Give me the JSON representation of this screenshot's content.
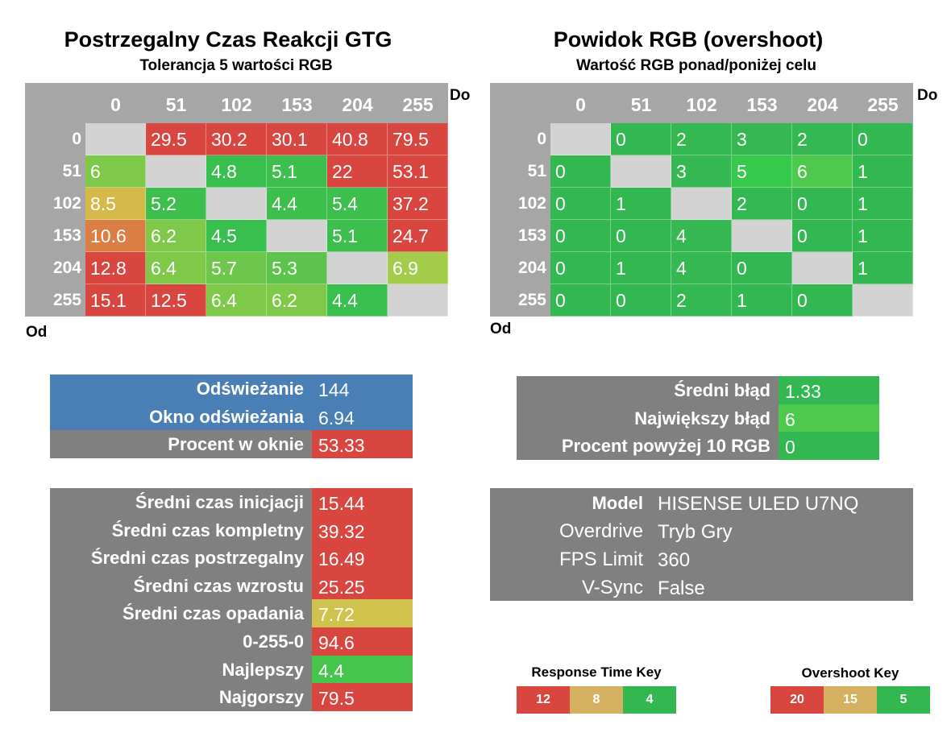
{
  "left_chart": {
    "title": "Postrzegalny Czas Reakcji GTG",
    "subtitle": "Tolerancja 5 wartości RGB",
    "to_label": "Do",
    "from_label": "Od"
  },
  "right_chart": {
    "title": "Powidok RGB (overshoot)",
    "subtitle": "Wartość RGB ponad/poniżej celu",
    "to_label": "Do",
    "from_label": "Od"
  },
  "chart_data": [
    {
      "type": "heatmap",
      "title": "Postrzegalny Czas Reakcji GTG",
      "subtitle": "Tolerancja 5 wartości RGB",
      "xlabel": "Do",
      "ylabel": "Od",
      "x": [
        "0",
        "51",
        "102",
        "153",
        "204",
        "255"
      ],
      "y": [
        "0",
        "51",
        "102",
        "153",
        "204",
        "255"
      ],
      "values": [
        [
          null,
          "29.5",
          "30.2",
          "30.1",
          "40.8",
          "79.5"
        ],
        [
          "6",
          null,
          "4.8",
          "5.1",
          "22",
          "53.1"
        ],
        [
          "8.5",
          "5.2",
          null,
          "4.4",
          "5.4",
          "37.2"
        ],
        [
          "10.6",
          "6.2",
          "4.5",
          null,
          "5.1",
          "24.7"
        ],
        [
          "12.8",
          "6.4",
          "5.7",
          "5.3",
          null,
          "6.9"
        ],
        [
          "15.1",
          "12.5",
          "6.4",
          "6.2",
          "4.4",
          null
        ]
      ],
      "colors": [
        [
          null,
          "#d9453f",
          "#d9453f",
          "#d9453f",
          "#d9453f",
          "#d9453f"
        ],
        [
          "#7fc94a",
          null,
          "#38bf4e",
          "#3cbf4c",
          "#d9453f",
          "#d9453f"
        ],
        [
          "#d4b94a",
          "#3cbf4c",
          null,
          "#3cbf4c",
          "#3cbf4c",
          "#d9453f"
        ],
        [
          "#da7e44",
          "#7fc94a",
          "#38bf4e",
          null,
          "#3cbf4c",
          "#d9453f"
        ],
        [
          "#d9453f",
          "#7fc94a",
          "#6ec64d",
          "#5cc44c",
          null,
          "#a3cc4b"
        ],
        [
          "#d9453f",
          "#d9453f",
          "#7fc94a",
          "#7fc94a",
          "#38bf4e",
          null
        ]
      ]
    },
    {
      "type": "heatmap",
      "title": "Powidok RGB (overshoot)",
      "subtitle": "Wartość RGB ponad/poniżej celu",
      "xlabel": "Do",
      "ylabel": "Od",
      "x": [
        "0",
        "51",
        "102",
        "153",
        "204",
        "255"
      ],
      "y": [
        "0",
        "51",
        "102",
        "153",
        "204",
        "255"
      ],
      "values": [
        [
          null,
          "0",
          "2",
          "3",
          "2",
          "0"
        ],
        [
          "0",
          null,
          "3",
          "5",
          "6",
          "1"
        ],
        [
          "0",
          "1",
          null,
          "2",
          "0",
          "1"
        ],
        [
          "0",
          "0",
          "4",
          null,
          "0",
          "1"
        ],
        [
          "0",
          "1",
          "4",
          "0",
          null,
          "1"
        ],
        [
          "0",
          "0",
          "2",
          "1",
          "0",
          null
        ]
      ],
      "colors": [
        [
          null,
          "#33b751",
          "#34b852",
          "#35b852",
          "#34b852",
          "#33b751"
        ],
        [
          "#33b751",
          null,
          "#35b852",
          "#37c94c",
          "#4ec94e",
          "#33b751"
        ],
        [
          "#33b751",
          "#33b751",
          null,
          "#34b852",
          "#33b751",
          "#33b751"
        ],
        [
          "#33b751",
          "#33b751",
          "#36b852",
          null,
          "#33b751",
          "#33b751"
        ],
        [
          "#33b751",
          "#33b751",
          "#36b852",
          "#33b751",
          null,
          "#33b751"
        ],
        [
          "#33b751",
          "#33b751",
          "#34b852",
          "#33b751",
          "#33b751",
          null
        ]
      ]
    }
  ],
  "refresh_table": {
    "rows": [
      {
        "label": "Odświeżanie",
        "value": "144",
        "label_bg": "#4a7fb5",
        "value_bg": "#4a7fb5"
      },
      {
        "label": "Okno odświeżania",
        "value": "6.94",
        "label_bg": "#4a7fb5",
        "value_bg": "#4a7fb5"
      },
      {
        "label": "Procent w oknie",
        "value": "53.33",
        "label_bg": "#808080",
        "value_bg": "#d9453f"
      }
    ]
  },
  "error_table": {
    "rows": [
      {
        "label": "Średni błąd",
        "value": "1.33",
        "value_bg": "#33b751"
      },
      {
        "label": "Największy błąd",
        "value": "6",
        "value_bg": "#4ec94e"
      },
      {
        "label": "Procent powyżej 10 RGB",
        "value": "0",
        "value_bg": "#33b751"
      }
    ]
  },
  "times_table": {
    "rows": [
      {
        "label": "Średni czas inicjacji",
        "value": "15.44",
        "value_bg": "#d9453f"
      },
      {
        "label": "Średni czas kompletny",
        "value": "39.32",
        "value_bg": "#d9453f"
      },
      {
        "label": "Średni czas postrzegalny",
        "value": "16.49",
        "value_bg": "#d9453f"
      },
      {
        "label": "Średni czas wzrostu",
        "value": "25.25",
        "value_bg": "#d9453f"
      },
      {
        "label": "Średni czas opadania",
        "value": "7.72",
        "value_bg": "#cfc24d"
      },
      {
        "label": "0-255-0",
        "value": "94.6",
        "value_bg": "#d9453f"
      },
      {
        "label": "Najlepszy",
        "value": "4.4",
        "value_bg": "#44c64d"
      },
      {
        "label": "Najgorszy",
        "value": "79.5",
        "value_bg": "#d9453f"
      }
    ]
  },
  "model_table": {
    "rows": [
      {
        "label": "Model",
        "value": "HISENSE ULED U7NQ",
        "bold": true
      },
      {
        "label": "Overdrive",
        "value": "Tryb Gry",
        "bold": false
      },
      {
        "label": "FPS Limit",
        "value": "360",
        "bold": false
      },
      {
        "label": "V-Sync",
        "value": "False",
        "bold": false
      }
    ]
  },
  "response_key": {
    "title": "Response Time Key",
    "cells": [
      {
        "label": "12",
        "color": "#d9453f"
      },
      {
        "label": "8",
        "color": "#d4b060"
      },
      {
        "label": "4",
        "color": "#33b751"
      }
    ]
  },
  "overshoot_key": {
    "title": "Overshoot Key",
    "cells": [
      {
        "label": "20",
        "color": "#d9453f"
      },
      {
        "label": "15",
        "color": "#d4b060"
      },
      {
        "label": "5",
        "color": "#33b751"
      }
    ]
  },
  "colors": {
    "header_gray": "#a6a6a6",
    "diagonal_gray": "#d3d3d3",
    "panel_gray": "#808080",
    "blue": "#4a7fb5"
  }
}
